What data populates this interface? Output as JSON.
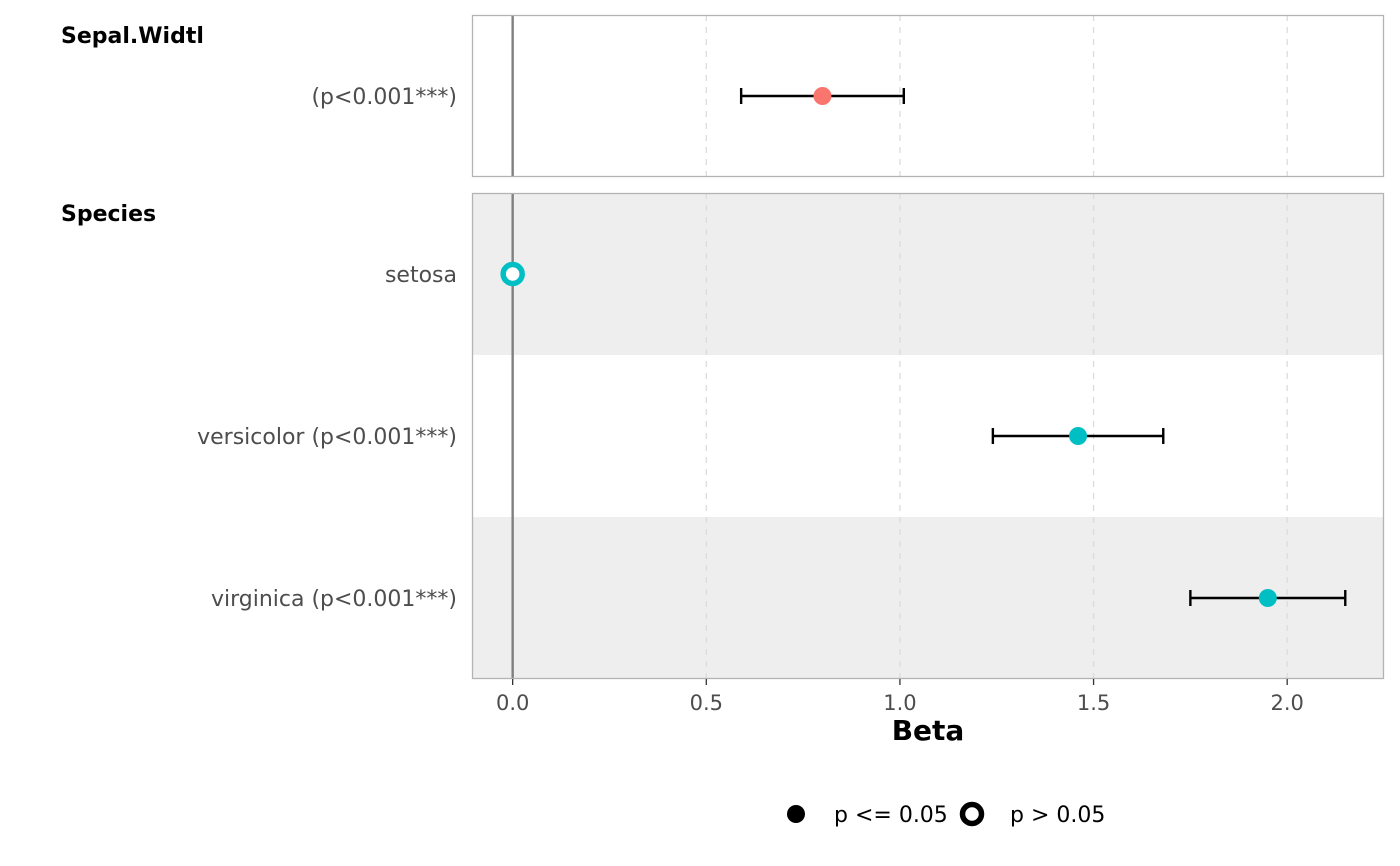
{
  "chart_data": {
    "type": "forest",
    "xlabel": "Beta",
    "xlim": [
      -0.105,
      2.25
    ],
    "x_ticks": [
      0.0,
      0.5,
      1.0,
      1.5,
      2.0
    ],
    "x_tick_labels": [
      "0.0",
      "0.5",
      "1.0",
      "1.5",
      "2.0"
    ],
    "reference_line": 0,
    "grid": "vertical dashed",
    "groups": [
      {
        "title": "Sepal.Widtl",
        "color": "#F8766D",
        "rows": [
          {
            "label": "(p<0.001***)",
            "estimate": 0.8,
            "ci_low": 0.59,
            "ci_high": 1.01,
            "significant": true,
            "stripe": false
          }
        ]
      },
      {
        "title": "Species",
        "color": "#00BFC4",
        "rows": [
          {
            "label": "setosa",
            "estimate": 0.0,
            "ci_low": null,
            "ci_high": null,
            "significant": false,
            "stripe": true
          },
          {
            "label": "versicolor (p<0.001***)",
            "estimate": 1.46,
            "ci_low": 1.24,
            "ci_high": 1.68,
            "significant": true,
            "stripe": false
          },
          {
            "label": "virginica (p<0.001***)",
            "estimate": 1.95,
            "ci_low": 1.75,
            "ci_high": 2.15,
            "significant": true,
            "stripe": true
          }
        ]
      }
    ],
    "legend": {
      "position": "bottom",
      "items": [
        {
          "label": "p <= 0.05",
          "shape": "filled-circle"
        },
        {
          "label": "p > 0.05",
          "shape": "hollow-circle"
        }
      ]
    }
  }
}
